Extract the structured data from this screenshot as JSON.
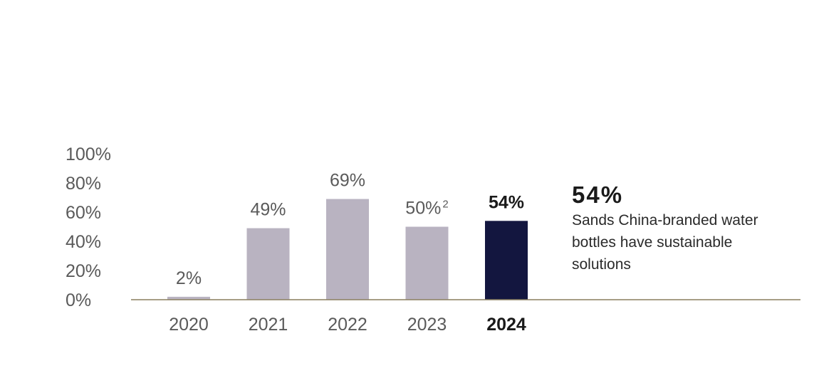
{
  "chart_data": {
    "type": "bar",
    "categories": [
      "2020",
      "2021",
      "2022",
      "2023",
      "2024"
    ],
    "values": [
      2,
      49,
      69,
      50,
      54
    ],
    "data_labels": [
      "2%",
      "49%",
      "69%",
      "50%",
      "54%"
    ],
    "data_label_footnotes": [
      "",
      "",
      "",
      "2",
      ""
    ],
    "highlight_index": 4,
    "y_ticks": [
      "0%",
      "20%",
      "40%",
      "60%",
      "80%",
      "100%"
    ],
    "ylim": [
      0,
      100
    ],
    "grid": false,
    "title": "",
    "xlabel": "",
    "ylabel": "",
    "colors": {
      "bar": "#b9b3c1",
      "highlight": "#13163f",
      "baseline": "#8a7f5f"
    }
  },
  "callout": {
    "value": "54%",
    "text": "Sands China-branded water bottles have sustainable solutions"
  }
}
